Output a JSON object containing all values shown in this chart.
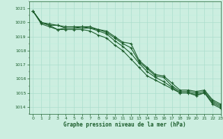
{
  "title": "Graphe pression niveau de la mer (hPa)",
  "bg_color": "#cceee0",
  "grid_major_color": "#aaddcc",
  "grid_minor_color": "#bbeedc",
  "line_color": "#1a5c2a",
  "xlim": [
    -0.5,
    23
  ],
  "ylim": [
    1013.5,
    1021.5
  ],
  "yticks": [
    1014,
    1015,
    1016,
    1017,
    1018,
    1019,
    1020,
    1021
  ],
  "xticks": [
    0,
    1,
    2,
    3,
    4,
    5,
    6,
    7,
    8,
    9,
    10,
    11,
    12,
    13,
    14,
    15,
    16,
    17,
    18,
    19,
    20,
    21,
    22,
    23
  ],
  "series": [
    [
      1020.8,
      1020.0,
      1019.8,
      1019.5,
      1019.6,
      1019.6,
      1019.6,
      1019.6,
      1019.5,
      1019.4,
      1019.0,
      1018.6,
      1018.5,
      1017.3,
      1016.8,
      1016.3,
      1016.2,
      1015.7,
      1015.2,
      1015.2,
      1015.1,
      1015.2,
      1014.5,
      1014.2
    ],
    [
      1020.8,
      1020.0,
      1019.9,
      1019.8,
      1019.7,
      1019.7,
      1019.7,
      1019.7,
      1019.5,
      1019.3,
      1018.9,
      1018.5,
      1018.2,
      1017.2,
      1016.7,
      1016.2,
      1016.1,
      1015.5,
      1015.1,
      1015.1,
      1015.0,
      1015.1,
      1014.4,
      1014.1
    ],
    [
      1020.8,
      1020.0,
      1019.8,
      1019.8,
      1019.6,
      1019.6,
      1019.7,
      1019.6,
      1019.4,
      1019.2,
      1018.7,
      1018.3,
      1017.8,
      1017.1,
      1016.5,
      1016.1,
      1015.8,
      1015.4,
      1015.0,
      1015.0,
      1014.9,
      1015.0,
      1014.3,
      1014.0
    ],
    [
      1020.8,
      1019.9,
      1019.7,
      1019.5,
      1019.5,
      1019.5,
      1019.5,
      1019.4,
      1019.1,
      1018.9,
      1018.4,
      1018.0,
      1017.4,
      1016.8,
      1016.2,
      1015.9,
      1015.6,
      1015.3,
      1015.0,
      1015.0,
      1014.8,
      1015.0,
      1014.2,
      1013.9
    ]
  ]
}
